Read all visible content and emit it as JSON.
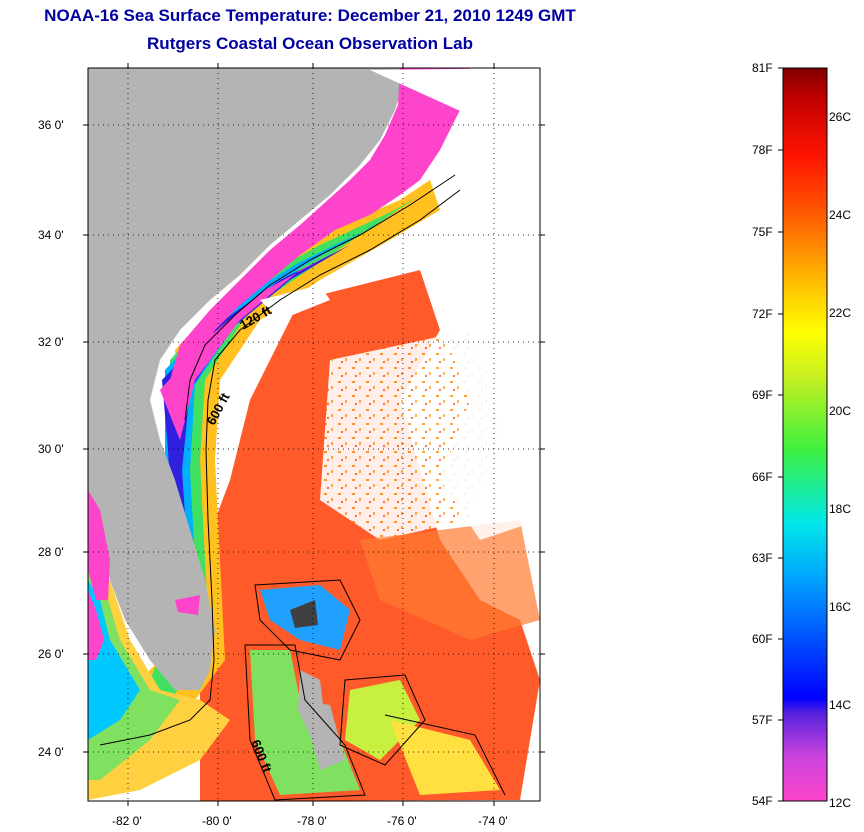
{
  "title": "NOAA-16 Sea Surface Temperature:  December 21, 2010 1249 GMT",
  "subtitle": "Rutgers Coastal Ocean Observation Lab",
  "map": {
    "lat_ticks": [
      "36 0'",
      "34 0'",
      "32 0'",
      "30 0'",
      "28 0'",
      "26 0'",
      "24 0'"
    ],
    "lon_ticks": [
      "-82 0'",
      "-80 0'",
      "-78 0'",
      "-76 0'",
      "-74 0'"
    ],
    "contour_labels": [
      "120 ft",
      "600 ft",
      "600 ft"
    ],
    "colors": {
      "land": "#b4b4b4",
      "cloud": "#ffffff"
    }
  },
  "colorbar": {
    "fahrenheit_labels": [
      "81F",
      "78F",
      "75F",
      "72F",
      "69F",
      "66F",
      "63F",
      "60F",
      "57F",
      "54F"
    ],
    "celsius_labels": [
      "26C",
      "24C",
      "22C",
      "20C",
      "18C",
      "16C",
      "14C",
      "12C"
    ]
  }
}
